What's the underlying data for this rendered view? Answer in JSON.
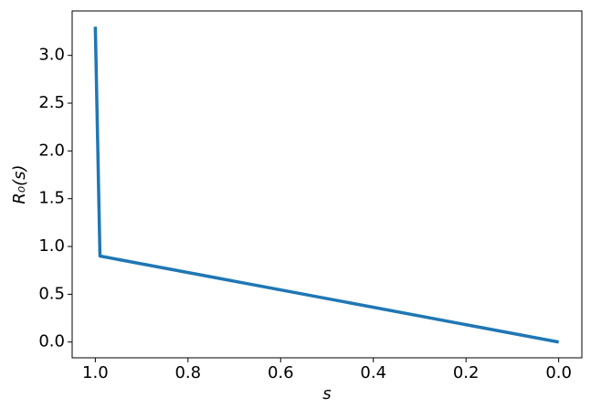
{
  "chart_data": {
    "type": "line",
    "x": [
      1.0,
      0.99,
      0.0
    ],
    "values": [
      3.3,
      0.9,
      0.0
    ],
    "color": "#1f77b4",
    "xlabel": "s",
    "ylabel": "R₀(s)",
    "xlim": [
      1.05,
      -0.05
    ],
    "ylim": [
      -0.165,
      3.465
    ],
    "xticks": [
      {
        "value": 1.0,
        "label": "1.0"
      },
      0.8,
      0.6,
      0.4,
      0.2,
      {
        "value": 0.0,
        "label": "0.0"
      }
    ],
    "yticks": [
      {
        "value": 0.0,
        "label": "0.0"
      },
      0.5,
      {
        "value": 1.0,
        "label": "1.0"
      },
      1.5,
      {
        "value": 2.0,
        "label": "2.0"
      },
      2.5,
      {
        "value": 3.0,
        "label": "3.0"
      }
    ],
    "grid": false
  }
}
